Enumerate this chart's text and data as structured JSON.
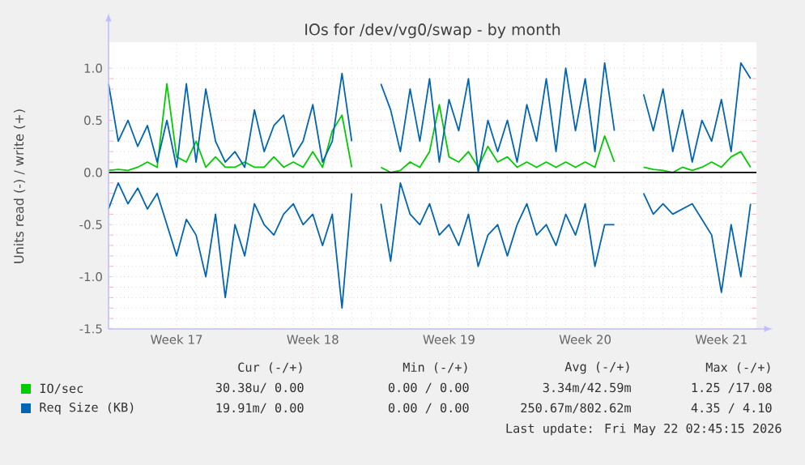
{
  "chart_data": {
    "type": "line",
    "title": "IOs for /dev/vg0/swap - by month",
    "ylabel": "Units read (-) / write (+)",
    "categories": [
      null,
      null,
      null,
      null,
      null,
      null,
      null,
      "Week 17",
      null,
      null,
      null,
      null,
      null,
      null,
      null,
      null,
      null,
      null,
      null,
      null,
      null,
      "Week 18",
      null,
      null,
      null,
      null,
      null,
      null,
      null,
      null,
      null,
      null,
      null,
      null,
      null,
      "Week 19",
      null,
      null,
      null,
      null,
      null,
      null,
      null,
      null,
      null,
      null,
      null,
      null,
      null,
      "Week 20",
      null,
      null,
      null,
      null,
      null,
      null,
      null,
      null,
      null,
      null,
      null,
      null,
      null,
      "Week 21",
      null,
      null,
      null
    ],
    "series": [
      {
        "name": "IO/sec",
        "color": "#00cc00",
        "values": [
          0.02,
          0.03,
          0.02,
          0.05,
          0.1,
          0.05,
          0.85,
          0.15,
          0.1,
          0.3,
          0.05,
          0.15,
          0.05,
          0.05,
          0.1,
          0.05,
          0.05,
          0.15,
          0.05,
          0.1,
          0.05,
          0.2,
          0.05,
          0.4,
          0.55,
          0.05,
          null,
          null,
          0.05,
          0.0,
          0.02,
          0.1,
          0.05,
          0.2,
          0.65,
          0.15,
          0.1,
          0.2,
          0.05,
          0.25,
          0.1,
          0.15,
          0.05,
          0.1,
          0.05,
          0.1,
          0.05,
          0.1,
          0.05,
          0.1,
          0.05,
          0.35,
          0.1,
          null,
          null,
          0.05,
          0.03,
          0.02,
          0.0,
          0.05,
          0.02,
          0.05,
          0.1,
          0.05,
          0.15,
          0.2,
          0.05
        ]
      },
      {
        "name": "Req Size (KB)",
        "color": "#0066b3",
        "values": [
          0.85,
          0.3,
          0.5,
          0.25,
          0.45,
          0.1,
          0.5,
          0.05,
          0.85,
          0.1,
          0.8,
          0.3,
          0.1,
          0.2,
          0.05,
          0.6,
          0.2,
          0.45,
          0.55,
          0.15,
          0.3,
          0.65,
          0.1,
          0.3,
          0.95,
          0.3,
          null,
          null,
          0.85,
          0.6,
          0.2,
          0.8,
          0.3,
          0.9,
          0.1,
          0.7,
          0.4,
          0.9,
          0.0,
          0.5,
          0.2,
          0.5,
          0.1,
          0.65,
          0.3,
          0.9,
          0.2,
          1.0,
          0.4,
          0.9,
          0.2,
          1.05,
          0.4,
          null,
          null,
          0.75,
          0.4,
          0.8,
          0.2,
          0.6,
          0.1,
          0.5,
          0.3,
          0.7,
          0.2,
          1.05,
          0.9
        ]
      },
      {
        "color": "#0066b3",
        "values": [
          -0.35,
          -0.1,
          -0.3,
          -0.15,
          -0.35,
          -0.2,
          -0.5,
          -0.8,
          -0.45,
          -0.6,
          -1.0,
          -0.4,
          -1.2,
          -0.5,
          -0.8,
          -0.3,
          -0.5,
          -0.6,
          -0.4,
          -0.3,
          -0.5,
          -0.4,
          -0.7,
          -0.4,
          -1.3,
          -0.2,
          null,
          null,
          -0.3,
          -0.85,
          -0.1,
          -0.4,
          -0.5,
          -0.3,
          -0.6,
          -0.5,
          -0.7,
          -0.4,
          -0.9,
          -0.6,
          -0.5,
          -0.8,
          -0.5,
          -0.3,
          -0.6,
          -0.5,
          -0.7,
          -0.4,
          -0.6,
          -0.3,
          -0.9,
          -0.5,
          -0.5,
          null,
          null,
          -0.2,
          -0.4,
          -0.3,
          -0.4,
          -0.35,
          -0.3,
          -0.45,
          -0.6,
          -1.15,
          -0.5,
          -1.0,
          -0.3
        ]
      }
    ],
    "ylim": [
      -1.5,
      1.25
    ],
    "yticks": [
      {
        "value": -1.5,
        "label": "-1.5"
      },
      {
        "value": -1,
        "label": "-1.0"
      },
      {
        "value": -0.5,
        "label": "-0.5"
      },
      {
        "value": 0,
        "label": "0.0"
      },
      {
        "value": 0.5,
        "label": "0.5"
      },
      {
        "value": 1,
        "label": "1.0"
      }
    ],
    "grid": true,
    "legend": "bottom",
    "ref_lines": [
      {
        "axis": "y",
        "value": 0,
        "color": "#000000"
      }
    ],
    "annotations": [
      "Cur (-/+)",
      "Min (-/+)",
      "Avg (-/+)",
      "Max (-/+)",
      "30.38u/ 0.00",
      "0.00 / 0.00",
      "3.34m/42.59m",
      "1.25 /17.08",
      "19.91m/ 0.00",
      "0.00 / 0.00",
      "250.67m/802.62m",
      "4.35 / 4.10",
      "Last update: Fri May 22 02:45:15 2026"
    ]
  }
}
